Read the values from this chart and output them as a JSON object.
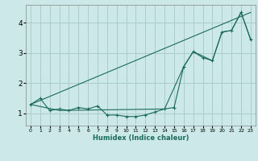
{
  "xlabel": "Humidex (Indice chaleur)",
  "bg_color": "#cce8e8",
  "grid_color": "#aacccc",
  "line_color": "#1a6b5a",
  "xlim": [
    -0.5,
    23.5
  ],
  "ylim": [
    0.6,
    4.6
  ],
  "yticks": [
    1,
    2,
    3,
    4
  ],
  "xticks": [
    0,
    1,
    2,
    3,
    4,
    5,
    6,
    7,
    8,
    9,
    10,
    11,
    12,
    13,
    14,
    15,
    16,
    17,
    18,
    19,
    20,
    21,
    22,
    23
  ],
  "series1_x": [
    0,
    1,
    2,
    3,
    4,
    5,
    6,
    7,
    8,
    9,
    10,
    11,
    12,
    13,
    14,
    15,
    16,
    17,
    18,
    19,
    20,
    21,
    22,
    23
  ],
  "series1_y": [
    1.3,
    1.5,
    1.1,
    1.15,
    1.1,
    1.2,
    1.15,
    1.25,
    0.95,
    0.95,
    0.9,
    0.9,
    0.95,
    1.05,
    1.15,
    1.2,
    2.55,
    3.05,
    2.85,
    2.75,
    3.7,
    3.75,
    4.35,
    3.45
  ],
  "series2_x": [
    0,
    23
  ],
  "series2_y": [
    1.3,
    4.35
  ],
  "series3_x": [
    0,
    3,
    14,
    16,
    17,
    19,
    20,
    21,
    22,
    23
  ],
  "series3_y": [
    1.3,
    1.1,
    1.15,
    2.55,
    3.05,
    2.75,
    3.7,
    3.75,
    4.35,
    3.45
  ]
}
